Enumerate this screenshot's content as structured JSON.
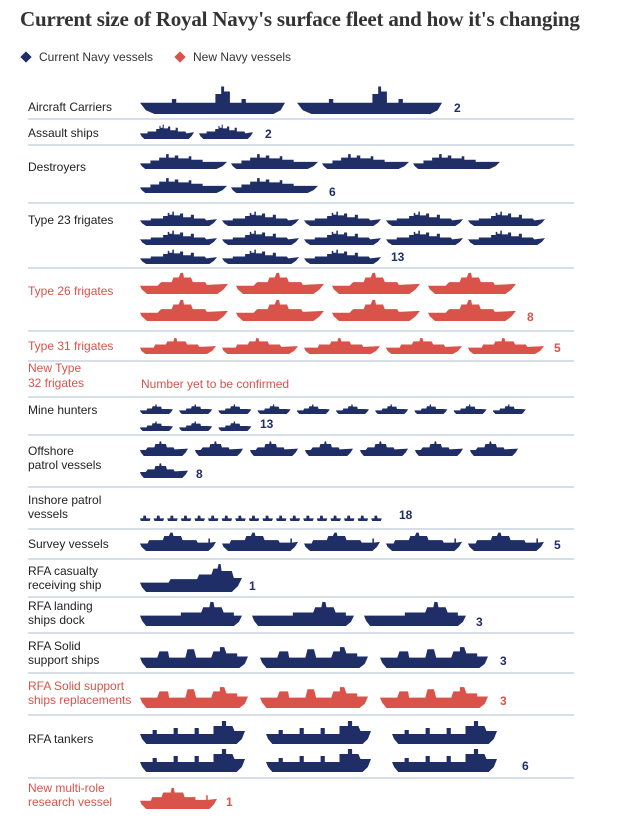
{
  "colors": {
    "current": "#1f2e66",
    "new": "#d9534a",
    "label": "#222222",
    "divider": "#c9d3e0",
    "title": "#333333"
  },
  "chart_data": {
    "type": "pictogram",
    "title": "Current size of Royal Navy's surface fleet and how it's changing",
    "legend": [
      {
        "label": "Current Navy vessels",
        "category": "current"
      },
      {
        "label": "New Navy vessels",
        "category": "new"
      }
    ],
    "series": [
      {
        "label": "Aircraft Carriers",
        "count": 2,
        "category": "current",
        "count_label": "2"
      },
      {
        "label": "Assault ships",
        "count": 2,
        "category": "current",
        "count_label": "2"
      },
      {
        "label": "Destroyers",
        "count": 6,
        "category": "current",
        "count_label": "6"
      },
      {
        "label": "Type 23 frigates",
        "count": 13,
        "category": "current",
        "count_label": "13"
      },
      {
        "label": "Type 26 frigates",
        "count": 8,
        "category": "new",
        "count_label": "8"
      },
      {
        "label": "Type 31 frigates",
        "count": 5,
        "category": "new",
        "count_label": "5"
      },
      {
        "label": "New Type 32 frigates",
        "count": null,
        "category": "new",
        "count_label": "",
        "note": "Number yet to be confirmed"
      },
      {
        "label": "Mine hunters",
        "count": 13,
        "category": "current",
        "count_label": "13"
      },
      {
        "label": "Offshore patrol vessels",
        "count": 8,
        "category": "current",
        "count_label": "8"
      },
      {
        "label": "Inshore patrol vessels",
        "count": 18,
        "category": "current",
        "count_label": "18"
      },
      {
        "label": "Survey vessels",
        "count": 5,
        "category": "current",
        "count_label": "5"
      },
      {
        "label": "RFA casualty receiving ship",
        "count": 1,
        "category": "current",
        "count_label": "1"
      },
      {
        "label": "RFA landing ships dock",
        "count": 3,
        "category": "current",
        "count_label": "3"
      },
      {
        "label": "RFA Solid support ships",
        "count": 3,
        "category": "current",
        "count_label": "3"
      },
      {
        "label": "RFA Solid support ships replacements",
        "count": 3,
        "category": "new",
        "count_label": "3"
      },
      {
        "label": "RFA tankers",
        "count": 6,
        "category": "current",
        "count_label": "6"
      },
      {
        "label": "New multi-role research vessel",
        "count": 1,
        "category": "new",
        "count_label": "1"
      }
    ]
  }
}
